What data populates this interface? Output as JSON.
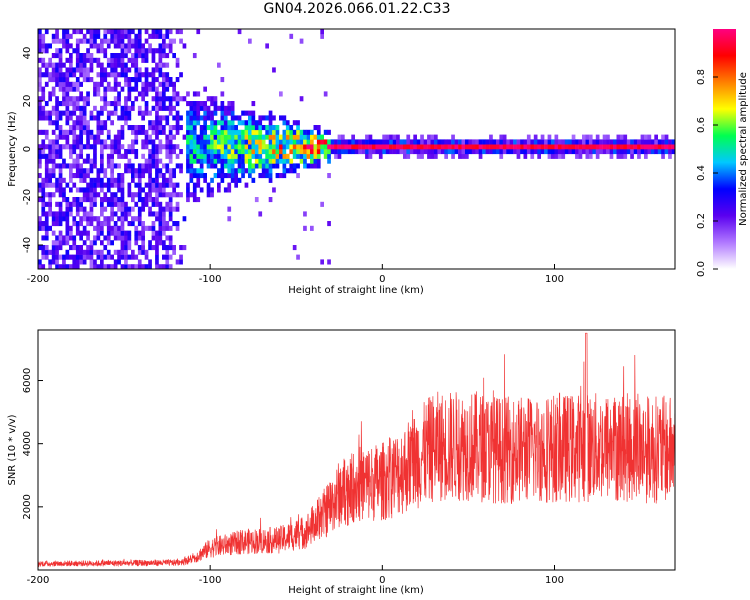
{
  "title": "GN04.2026.066.01.22.C33",
  "chart_data": [
    {
      "type": "heatmap",
      "title": "GN04.2026.066.01.22.C33",
      "xlabel": "Height of straight line (km)",
      "ylabel": "Frequency (Hz)",
      "xlim": [
        -200,
        170
      ],
      "ylim": [
        -50,
        50
      ],
      "xticks": [
        -200,
        -100,
        0,
        100
      ],
      "yticks": [
        -40,
        -20,
        0,
        20,
        40
      ],
      "colorbar": {
        "label": "Normalized spectral amplitude",
        "range": [
          0,
          1
        ],
        "ticks": [
          "0.0",
          "0.2",
          "0.4",
          "0.6",
          "0.8"
        ],
        "colors": [
          "#ffffff",
          "#b078ff",
          "#5a00f0",
          "#0000ff",
          "#00c8ff",
          "#00ff50",
          "#ffff00",
          "#ff8000",
          "#ff0000",
          "#ff0080"
        ]
      },
      "features": {
        "noise_region_x": [
          -200,
          -115
        ],
        "spread_region_x": [
          -115,
          -30
        ],
        "carrier_region_x": [
          -30,
          170
        ],
        "carrier_frequency": 0
      }
    },
    {
      "type": "line",
      "xlabel": "Height of straight line (km)",
      "ylabel": "SNR (10 * v/v)",
      "xlim": [
        -200,
        170
      ],
      "ylim": [
        0,
        7600
      ],
      "xticks": [
        -200,
        -100,
        0,
        100
      ],
      "yticks": [
        2000,
        4000,
        6000
      ],
      "series": [
        {
          "name": "SNR",
          "color": "#f03232",
          "envelope_x": [
            -200,
            -120,
            -110,
            -100,
            -80,
            -60,
            -45,
            -35,
            -25,
            -15,
            0,
            10,
            20,
            30,
            50,
            70,
            100,
            130,
            170
          ],
          "envelope_y": [
            200,
            230,
            350,
            700,
            900,
            950,
            1200,
            1700,
            2400,
            2700,
            2800,
            3100,
            3500,
            3900,
            3950,
            3800,
            3850,
            3900,
            3800
          ],
          "peak_value": 7500
        }
      ]
    }
  ]
}
